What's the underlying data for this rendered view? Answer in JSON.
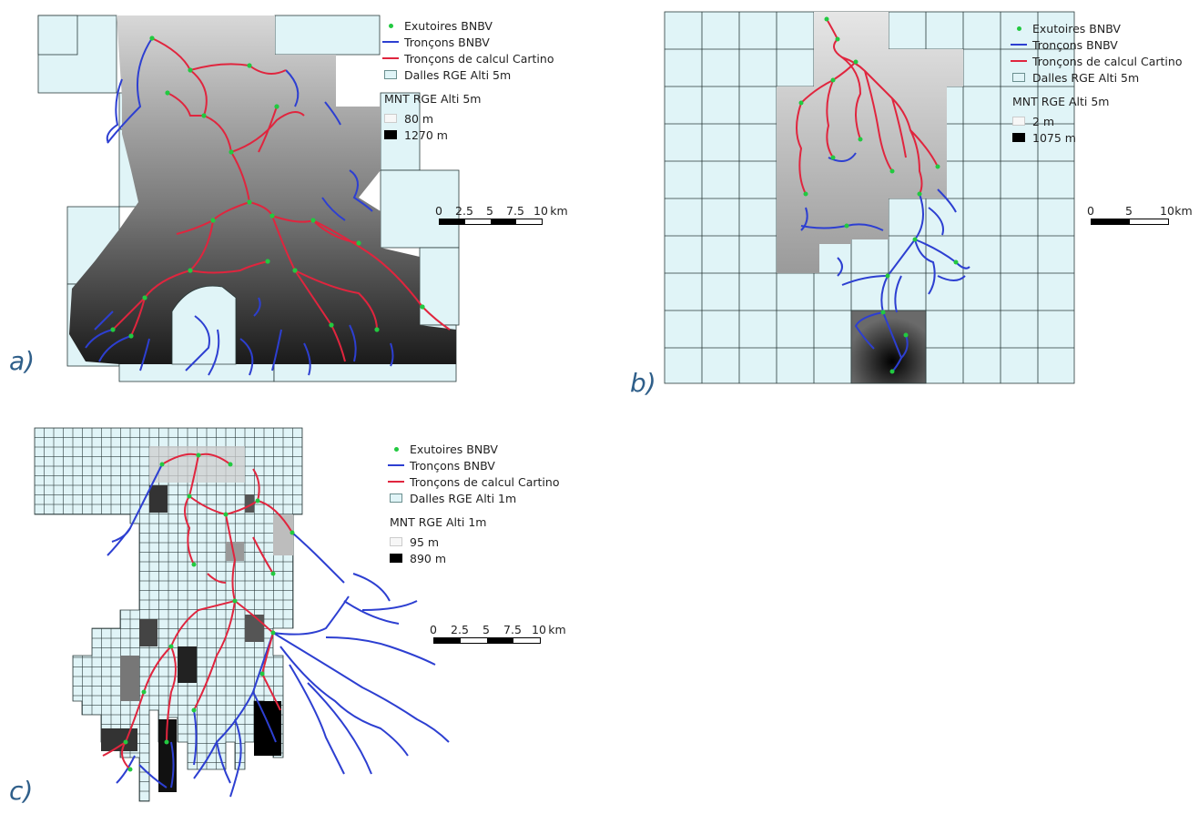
{
  "colors": {
    "outlet": "#22c940",
    "bnbv": "#2d3fd1",
    "cartino": "#e0253e",
    "tile_fill": "#e0f4f7",
    "tile_stroke": "#2a3a3a"
  },
  "panels": [
    {
      "letter": "a)",
      "legend": {
        "outlets": "Exutoires BNBV",
        "bnbv": "Tronçons BNBV",
        "cartino": "Tronçons de calcul Cartino",
        "tiles": "Dalles RGE Alti 5m",
        "dem_title": "MNT RGE Alti 5m",
        "dem_min": "80 m",
        "dem_max": "1270 m"
      },
      "scale": {
        "ticks": [
          "0",
          "2.5",
          "5",
          "7.5",
          "10"
        ],
        "unit": "km"
      }
    },
    {
      "letter": "b)",
      "legend": {
        "outlets": "Exutoires BNBV",
        "bnbv": "Tronçons BNBV",
        "cartino": "Tronçons de calcul Cartino",
        "tiles": "Dalles RGE Alti 5m",
        "dem_title": "MNT RGE Alti 5m",
        "dem_min": "2 m",
        "dem_max": "1075 m"
      },
      "scale": {
        "ticks": [
          "0",
          "5",
          "10"
        ],
        "unit": "km"
      }
    },
    {
      "letter": "c)",
      "legend": {
        "outlets": "Exutoires BNBV",
        "bnbv": "Tronçons BNBV",
        "cartino": "Tronçons de calcul Cartino",
        "tiles": "Dalles RGE Alti 1m",
        "dem_title": "MNT RGE Alti 1m",
        "dem_min": "95 m",
        "dem_max": "890 m"
      },
      "scale": {
        "ticks": [
          "0",
          "2.5",
          "5",
          "7.5",
          "10"
        ],
        "unit": "km"
      }
    }
  ]
}
